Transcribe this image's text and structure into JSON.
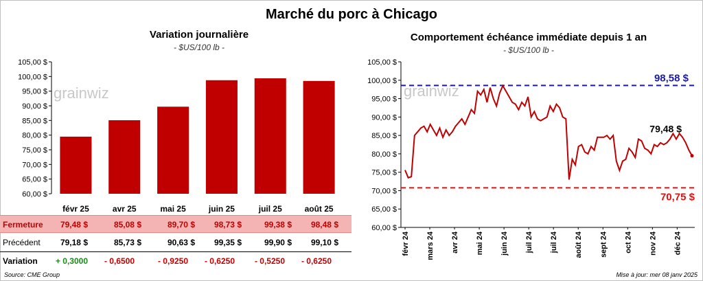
{
  "title": "Marché du porc à Chicago",
  "left": {
    "title": "Variation journalière",
    "subtitle": "- $US/100 lb -",
    "table": {
      "rows": [
        {
          "label": "Fermeture",
          "values": [
            "79,48  $",
            "85,08  $",
            "89,70  $",
            "98,73  $",
            "99,38  $",
            "98,48  $"
          ]
        },
        {
          "label": "Précédent",
          "values": [
            "79,18  $",
            "85,73  $",
            "90,63  $",
            "99,35  $",
            "99,90  $",
            "99,10  $"
          ]
        },
        {
          "label": "Variation",
          "values": [
            "+ 0,3000",
            "- 0,6500",
            "- 0,9250",
            "- 0,6250",
            "- 0,5250",
            "- 0,6250"
          ]
        }
      ]
    }
  },
  "right": {
    "title": "Comportement  échéance immédiate depuis 1 an",
    "subtitle": "- $US/100 lb -"
  },
  "watermark": "grainwiz",
  "source": "Source: CME Group",
  "update": "Mise à jour: mer 08 janv 2025",
  "colors": {
    "bar": "#c00000",
    "line": "#c00000",
    "max_line": "#1a1aaa",
    "min_line": "#e01010"
  },
  "chart_data": [
    {
      "type": "bar",
      "title": "Variation journalière",
      "subtitle": "- $US/100 lb -",
      "categories": [
        "févr 25",
        "avr 25",
        "mai 25",
        "juin 25",
        "juil 25",
        "août 25"
      ],
      "values": [
        79.48,
        85.08,
        89.7,
        98.73,
        99.38,
        98.48
      ],
      "ylim": [
        60,
        105
      ],
      "yticks": [
        "60,00 $",
        "65,00 $",
        "70,00 $",
        "75,00 $",
        "80,00 $",
        "85,00 $",
        "90,00 $",
        "95,00 $",
        "100,00 $",
        "105,00 $"
      ],
      "grid": false
    },
    {
      "type": "line",
      "title": "Comportement  échéance immédiate depuis 1 an",
      "subtitle": "- $US/100 lb -",
      "x_ticks": [
        "févr 24",
        "mars 24",
        "avr 24",
        "mai 24",
        "juin 24",
        "juil 24",
        "juil 24",
        "août 24",
        "sept 24",
        "oct 24",
        "nov 24",
        "déc 24"
      ],
      "ylim": [
        60,
        105
      ],
      "yticks": [
        "60,00 $",
        "65,00 $",
        "70,00 $",
        "75,00 $",
        "80,00 $",
        "85,00 $",
        "90,00 $",
        "95,00 $",
        "100,00 $",
        "105,00 $"
      ],
      "values": [
        75.6,
        73.5,
        73.8,
        85.0,
        86.0,
        87.0,
        87.5,
        86.0,
        88.0,
        86.5,
        85.0,
        87.0,
        84.5,
        86.5,
        85.0,
        86.0,
        87.5,
        88.5,
        89.5,
        88.0,
        90.0,
        92.0,
        91.0,
        97.0,
        96.0,
        97.5,
        94.0,
        98.0,
        95.0,
        93.0,
        96.5,
        98.5,
        97.0,
        95.5,
        94.0,
        93.5,
        92.0,
        94.0,
        93.0,
        95.5,
        90.0,
        91.5,
        89.5,
        89.0,
        89.5,
        90.0,
        93.0,
        91.5,
        93.5,
        92.5,
        90.0,
        89.5,
        73.0,
        78.5,
        77.0,
        82.0,
        82.5,
        80.5,
        80.0,
        82.0,
        81.0,
        84.5,
        84.5,
        84.5,
        85.0,
        84.0,
        85.0,
        78.0,
        75.5,
        78.0,
        78.5,
        81.5,
        80.5,
        79.0,
        84.0,
        83.5,
        81.5,
        81.0,
        80.0,
        82.5,
        82.0,
        83.0,
        82.5,
        83.0,
        84.0,
        85.5,
        84.0,
        85.5,
        84.5,
        83.0,
        81.0,
        79.48
      ],
      "series": [
        {
          "name": "Échéance immédiate",
          "values": "see values"
        }
      ],
      "max_value": 98.58,
      "max_label": "98,58 $",
      "min_value": 70.75,
      "min_label": "70,75 $",
      "last_value": 79.48,
      "last_label": "79,48 $",
      "grid": false
    }
  ]
}
